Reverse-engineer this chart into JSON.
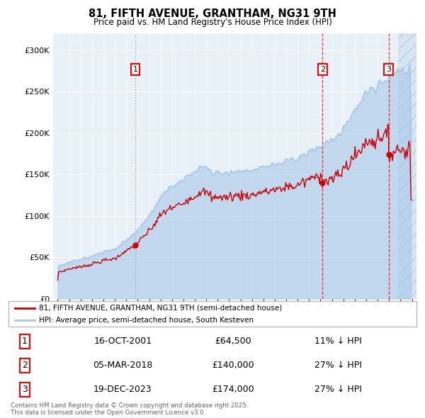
{
  "title": "81, FIFTH AVENUE, GRANTHAM, NG31 9TH",
  "subtitle": "Price paid vs. HM Land Registry's House Price Index (HPI)",
  "ylim": [
    0,
    320000
  ],
  "yticks": [
    0,
    50000,
    100000,
    150000,
    200000,
    250000,
    300000
  ],
  "sale_prices": [
    64500,
    140000,
    174000
  ],
  "sale_labels": [
    "1",
    "2",
    "3"
  ],
  "sale_years": [
    2001.79,
    2018.17,
    2023.96
  ],
  "sale_info": [
    [
      "1",
      "16-OCT-2001",
      "£64,500",
      "11% ↓ HPI"
    ],
    [
      "2",
      "05-MAR-2018",
      "£140,000",
      "27% ↓ HPI"
    ],
    [
      "3",
      "19-DEC-2023",
      "£174,000",
      "27% ↓ HPI"
    ]
  ],
  "legend_line1": "81, FIFTH AVENUE, GRANTHAM, NG31 9TH (semi-detached house)",
  "legend_line2": "HPI: Average price, semi-detached house, South Kesteven",
  "footer": "Contains HM Land Registry data © Crown copyright and database right 2025.\nThis data is licensed under the Open Government Licence v3.0.",
  "hpi_color": "#a8c8e8",
  "price_color": "#cc0000",
  "background_color": "#e8f0f8",
  "hatch_color": "#d0dff0"
}
